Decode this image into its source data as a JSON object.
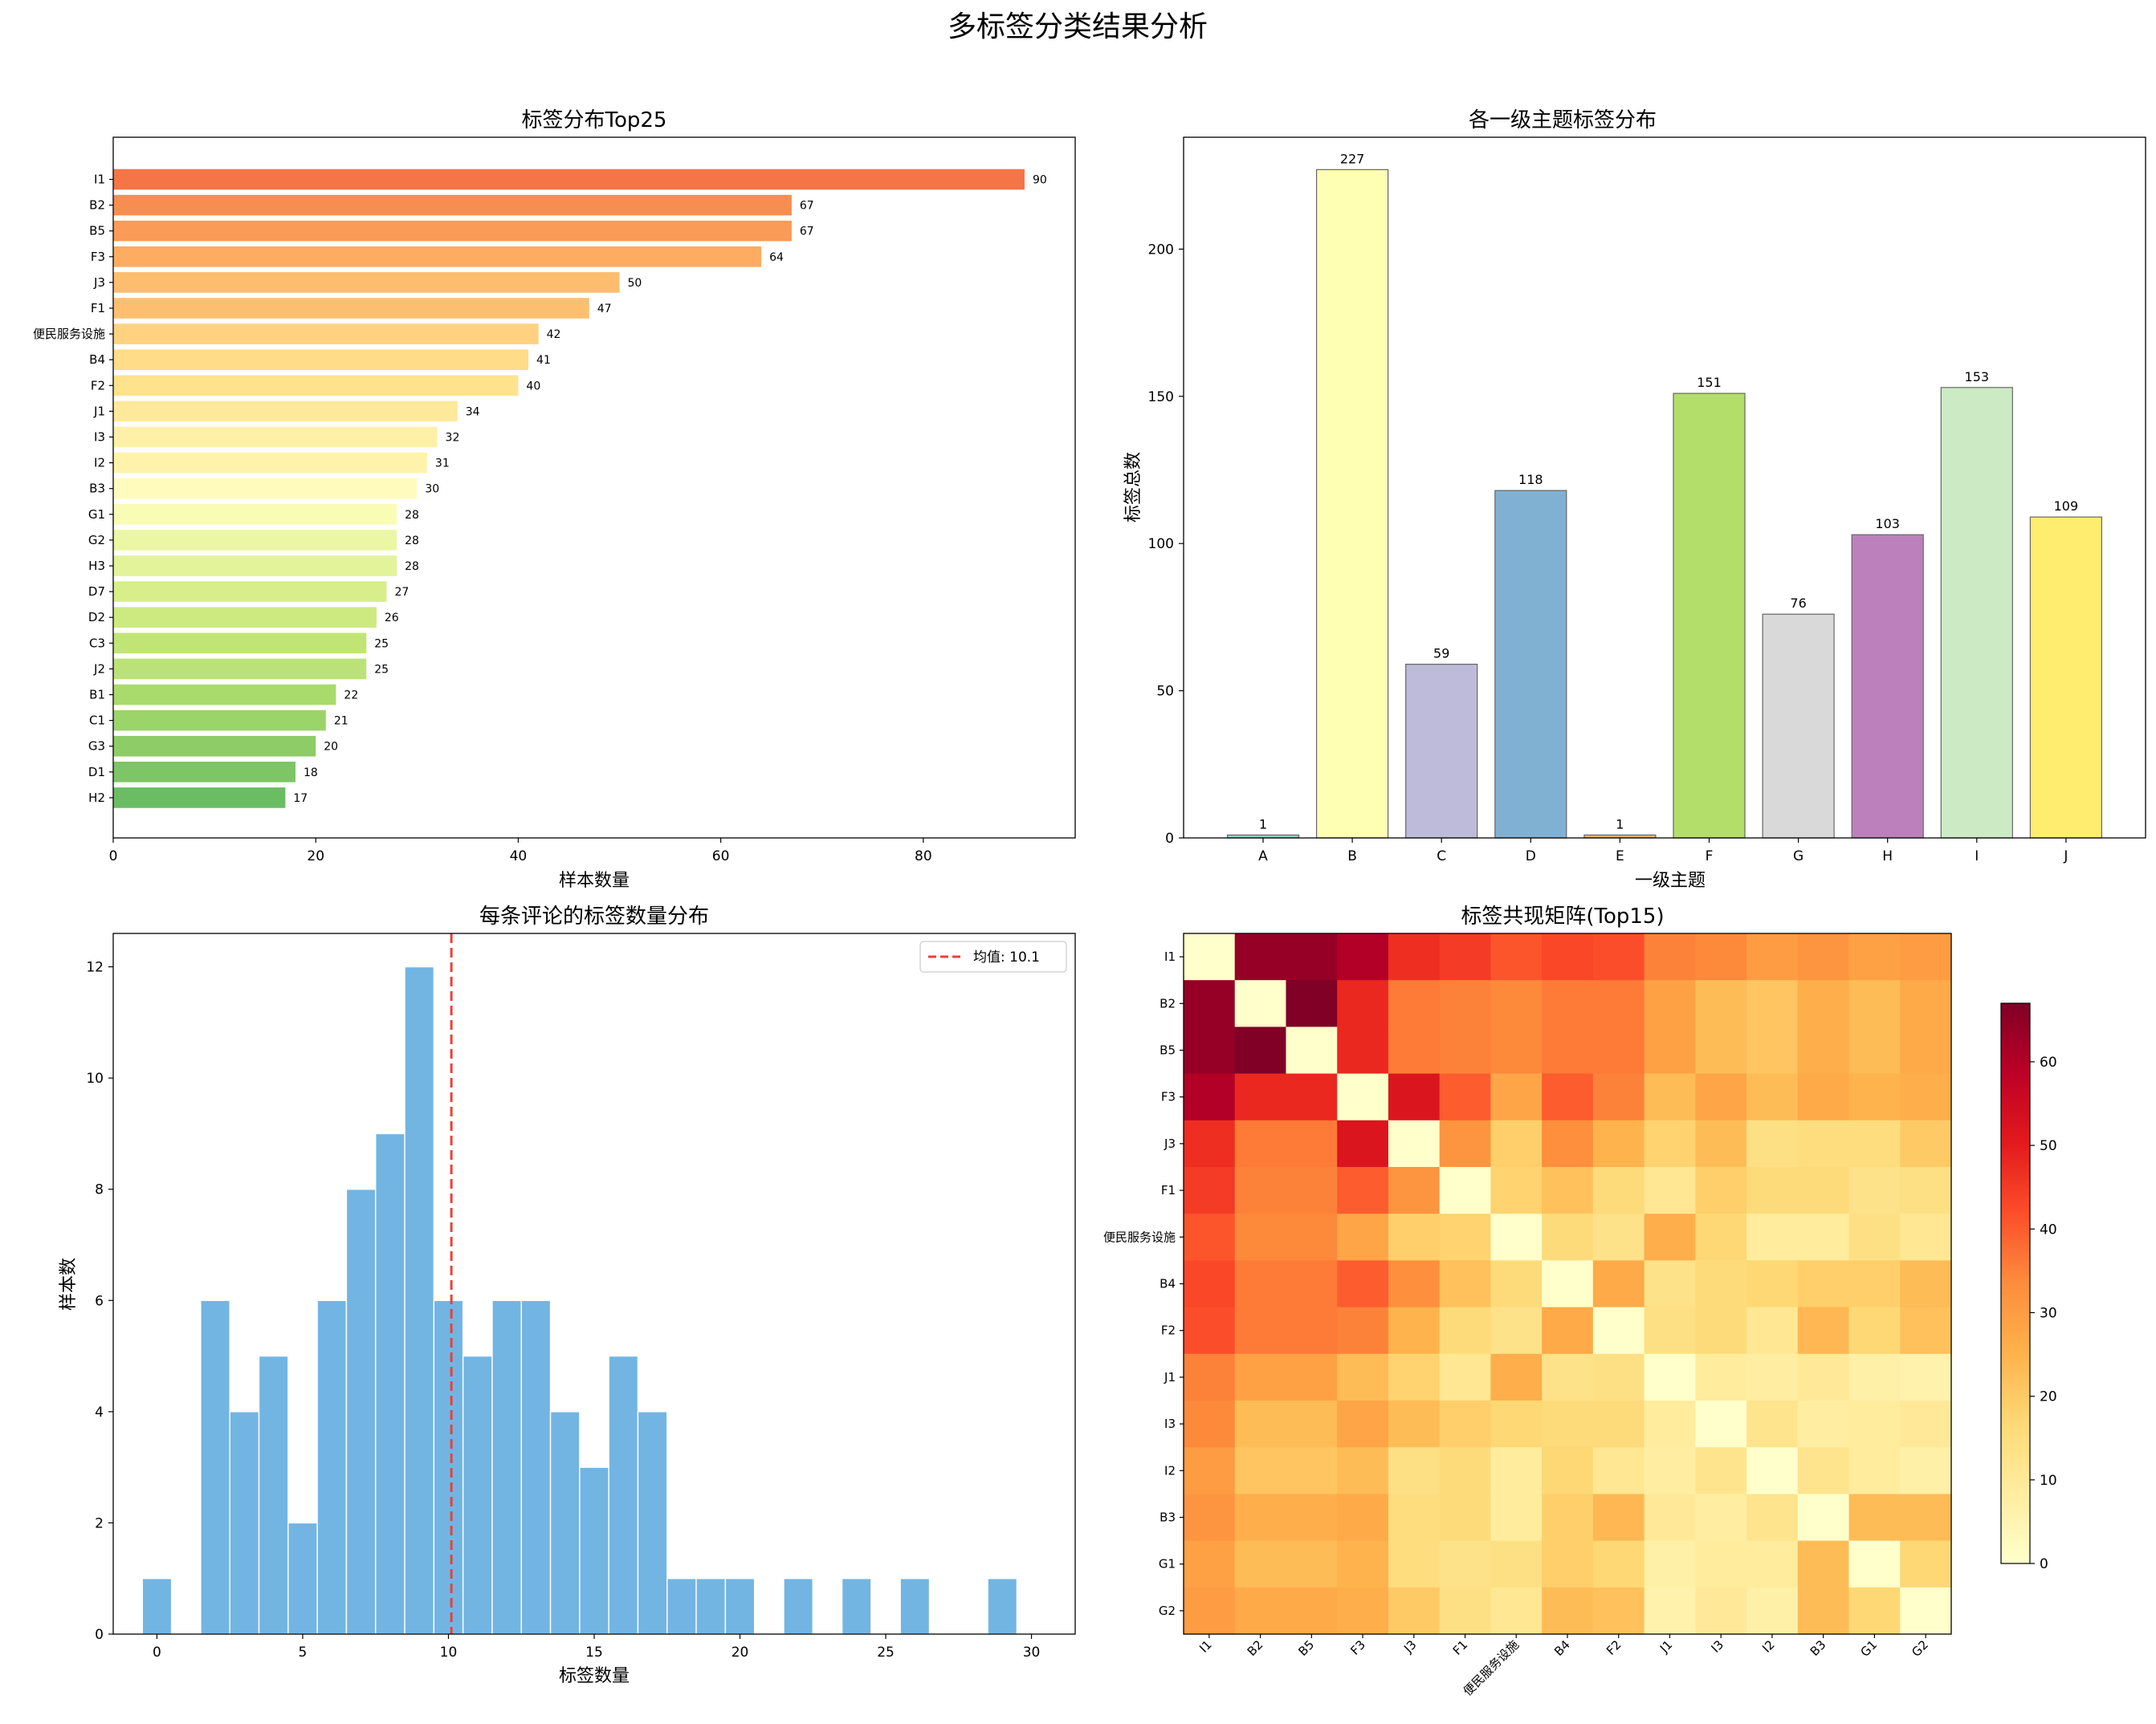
{
  "suptitle": "多标签分类结果分析",
  "chart_data": [
    {
      "type": "bar",
      "orientation": "horizontal",
      "title": "标签分布Top25",
      "xlabel": "样本数量",
      "ylabel": "",
      "xlim": [
        0,
        95
      ],
      "xticks": [
        0,
        20,
        40,
        60,
        80
      ],
      "categories": [
        "I1",
        "B2",
        "B5",
        "F3",
        "J3",
        "F1",
        "便民服务设施",
        "B4",
        "F2",
        "J1",
        "I3",
        "I2",
        "B3",
        "G1",
        "G2",
        "H3",
        "D7",
        "D2",
        "C3",
        "J2",
        "B1",
        "C1",
        "G3",
        "D1",
        "H2"
      ],
      "values": [
        90,
        67,
        67,
        64,
        50,
        47,
        42,
        41,
        40,
        34,
        32,
        31,
        30,
        28,
        28,
        28,
        27,
        26,
        25,
        25,
        22,
        21,
        20,
        18,
        17
      ],
      "colors": [
        "#f57546",
        "#f88d51",
        "#fa9b58",
        "#fdac61",
        "#fdbd6f",
        "#fdbf6f",
        "#fed281",
        "#fedc88",
        "#fee28c",
        "#fee99a",
        "#fff0a8",
        "#fff3ac",
        "#fffbbd",
        "#f8fcb5",
        "#ecf7a3",
        "#e3f399",
        "#d7ee8a",
        "#cdea80",
        "#c1e575",
        "#bbe278",
        "#a9da6c",
        "#9bd469",
        "#8dcc67",
        "#7dc565",
        "#6abd63"
      ]
    },
    {
      "type": "bar",
      "title": "各一级主题标签分布",
      "xlabel": "一级主题",
      "ylabel": "标签总数",
      "ylim": [
        0,
        238
      ],
      "yticks": [
        0,
        50,
        100,
        150,
        200
      ],
      "categories": [
        "A",
        "B",
        "C",
        "D",
        "E",
        "F",
        "G",
        "H",
        "I",
        "J"
      ],
      "values": [
        1,
        227,
        59,
        118,
        1,
        151,
        76,
        103,
        153,
        109
      ],
      "colors": [
        "#8dd3c7",
        "#ffffb3",
        "#bebada",
        "#80b1d3",
        "#fdb462",
        "#b3de69",
        "#d9d9d9",
        "#bc80bd",
        "#ccebc5",
        "#ffed6f"
      ]
    },
    {
      "type": "histogram",
      "title": "每条评论的标签数量分布",
      "xlabel": "标签数量",
      "ylabel": "样本数",
      "xlim": [
        -1.5,
        31.5
      ],
      "ylim": [
        0,
        12.6
      ],
      "xticks": [
        0,
        5,
        10,
        15,
        20,
        25,
        30
      ],
      "yticks": [
        0,
        2,
        4,
        6,
        8,
        10,
        12
      ],
      "bin_start": 0,
      "bin_width": 1,
      "counts": [
        1,
        0,
        6,
        4,
        5,
        2,
        6,
        8,
        9,
        12,
        6,
        5,
        6,
        6,
        4,
        3,
        5,
        4,
        1,
        1,
        1,
        0,
        1,
        0,
        1,
        0,
        1,
        0,
        0,
        1
      ],
      "bar_color": "#72b5e3",
      "mean": 10.1,
      "mean_color": "#e8423a",
      "legend": "均值: 10.1",
      "legend_position": "upper right"
    },
    {
      "type": "heatmap",
      "title": "标签共现矩阵(Top15)",
      "labels": [
        "I1",
        "B2",
        "B5",
        "F3",
        "J3",
        "F1",
        "便民服务设施",
        "B4",
        "F2",
        "J1",
        "I3",
        "I2",
        "B3",
        "G1",
        "G2"
      ],
      "vmin": 0,
      "vmax": 67,
      "colorbar_ticks": [
        0,
        10,
        20,
        30,
        40,
        50,
        60
      ],
      "colormap": "YlOrRd",
      "matrix": [
        [
          0,
          64,
          64,
          60,
          47,
          45,
          41,
          43,
          42,
          35,
          34,
          30,
          32,
          29,
          30
        ],
        [
          64,
          0,
          67,
          48,
          36,
          35,
          34,
          36,
          36,
          29,
          23,
          21,
          26,
          23,
          27
        ],
        [
          64,
          67,
          0,
          48,
          36,
          35,
          34,
          36,
          36,
          29,
          23,
          21,
          26,
          23,
          27
        ],
        [
          60,
          48,
          48,
          0,
          52,
          40,
          28,
          40,
          35,
          23,
          28,
          23,
          27,
          25,
          26
        ],
        [
          47,
          36,
          36,
          52,
          0,
          32,
          19,
          33,
          25,
          18,
          23,
          14,
          15,
          15,
          20
        ],
        [
          45,
          35,
          35,
          40,
          32,
          0,
          18,
          22,
          16,
          11,
          19,
          16,
          16,
          13,
          14
        ],
        [
          41,
          34,
          34,
          28,
          19,
          18,
          0,
          16,
          13,
          26,
          17,
          9,
          9,
          14,
          11
        ],
        [
          43,
          36,
          36,
          40,
          33,
          22,
          16,
          0,
          27,
          13,
          16,
          17,
          19,
          19,
          23
        ],
        [
          42,
          36,
          36,
          35,
          25,
          16,
          13,
          27,
          0,
          14,
          16,
          11,
          24,
          17,
          22
        ],
        [
          35,
          29,
          29,
          23,
          18,
          11,
          26,
          13,
          14,
          0,
          9,
          8,
          10,
          7,
          6
        ],
        [
          34,
          23,
          23,
          28,
          23,
          19,
          17,
          16,
          16,
          9,
          0,
          12,
          8,
          9,
          10
        ],
        [
          30,
          21,
          21,
          23,
          14,
          16,
          9,
          17,
          11,
          8,
          12,
          0,
          12,
          9,
          7
        ],
        [
          32,
          26,
          26,
          27,
          15,
          16,
          9,
          19,
          24,
          10,
          8,
          12,
          0,
          23,
          23
        ],
        [
          29,
          23,
          23,
          25,
          15,
          13,
          14,
          19,
          17,
          7,
          9,
          9,
          23,
          0,
          17
        ],
        [
          30,
          27,
          27,
          26,
          20,
          14,
          11,
          23,
          22,
          6,
          10,
          7,
          23,
          17,
          0
        ]
      ]
    }
  ]
}
